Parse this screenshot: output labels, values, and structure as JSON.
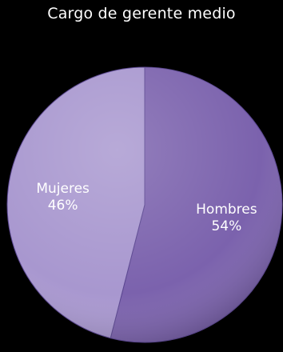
{
  "chart_data": {
    "type": "pie",
    "title": "Cargo de gerente medio",
    "slices": [
      {
        "label": "Hombres",
        "value": 54,
        "value_label": "54%",
        "color": "#7b62ad"
      },
      {
        "label": "Mujeres",
        "value": 46,
        "value_label": "46%",
        "color": "#a897cf"
      }
    ],
    "start_angle_deg": 0,
    "direction": "clockwise",
    "legend": "none"
  },
  "colors": {
    "background": "#000000",
    "text": "#ffffff"
  }
}
